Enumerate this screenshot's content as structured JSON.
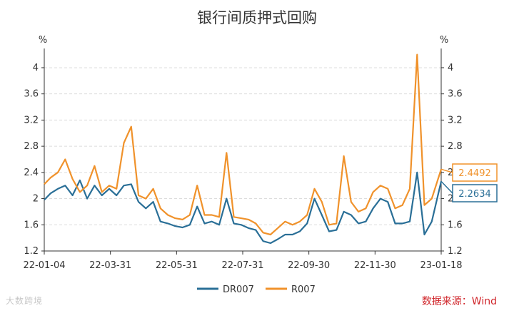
{
  "source_label": "数据来源：Wind",
  "watermark_text": "大数跨境",
  "colors": {
    "dr007": "#2a6f97",
    "r007": "#f0922b",
    "grid": "#dcdcdc",
    "axis": "#333333",
    "source": "#d0262b"
  },
  "chart_data": {
    "type": "line",
    "title": "银行间质押式回购",
    "y_unit_left": "%",
    "y_unit_right": "%",
    "ylim": [
      1.2,
      4.25
    ],
    "yticks": [
      1.2,
      1.6,
      2,
      2.4,
      2.8,
      3.2,
      3.6,
      4
    ],
    "ytick_labels": [
      "1.2",
      "1.6",
      "2",
      "2.4",
      "2.8",
      "3.2",
      "3.6",
      "4"
    ],
    "xlim": [
      "2022-01-04",
      "2023-01-18"
    ],
    "xtick_labels": [
      "22-01-04",
      "22-03-31",
      "22-05-31",
      "22-07-31",
      "22-09-30",
      "22-11-30",
      "23-01-18"
    ],
    "grid": true,
    "legend_position": "bottom",
    "end_labels": {
      "R007": "2.4492",
      "DR007": "2.2634"
    },
    "series": [
      {
        "name": "DR007",
        "x": [
          "2022-01-04",
          "2022-01-10",
          "2022-01-17",
          "2022-01-24",
          "2022-01-31",
          "2022-02-07",
          "2022-02-14",
          "2022-02-21",
          "2022-02-28",
          "2022-03-07",
          "2022-03-14",
          "2022-03-21",
          "2022-03-28",
          "2022-04-04",
          "2022-04-11",
          "2022-04-18",
          "2022-04-25",
          "2022-05-02",
          "2022-05-09",
          "2022-05-16",
          "2022-05-23",
          "2022-05-30",
          "2022-06-06",
          "2022-06-13",
          "2022-06-20",
          "2022-06-27",
          "2022-07-04",
          "2022-07-11",
          "2022-07-18",
          "2022-07-25",
          "2022-08-01",
          "2022-08-08",
          "2022-08-15",
          "2022-08-22",
          "2022-08-29",
          "2022-09-05",
          "2022-09-12",
          "2022-09-19",
          "2022-09-26",
          "2022-10-03",
          "2022-10-10",
          "2022-10-17",
          "2022-10-24",
          "2022-10-31",
          "2022-11-07",
          "2022-11-14",
          "2022-11-21",
          "2022-11-28",
          "2022-12-05",
          "2022-12-12",
          "2022-12-19",
          "2022-12-26",
          "2023-01-02",
          "2023-01-09",
          "2023-01-18"
        ],
        "values": [
          1.98,
          2.08,
          2.15,
          2.2,
          2.05,
          2.28,
          2.0,
          2.2,
          2.05,
          2.15,
          2.05,
          2.2,
          2.22,
          1.95,
          1.85,
          1.95,
          1.65,
          1.62,
          1.58,
          1.56,
          1.6,
          1.88,
          1.62,
          1.65,
          1.6,
          2.0,
          1.62,
          1.6,
          1.55,
          1.52,
          1.35,
          1.32,
          1.38,
          1.45,
          1.45,
          1.5,
          1.62,
          2.0,
          1.75,
          1.5,
          1.52,
          1.8,
          1.75,
          1.62,
          1.65,
          1.85,
          2.0,
          1.95,
          1.62,
          1.62,
          1.65,
          2.4,
          1.45,
          1.65,
          2.2634
        ]
      },
      {
        "name": "R007",
        "x": [
          "2022-01-04",
          "2022-01-10",
          "2022-01-17",
          "2022-01-24",
          "2022-01-31",
          "2022-02-07",
          "2022-02-14",
          "2022-02-21",
          "2022-02-28",
          "2022-03-07",
          "2022-03-14",
          "2022-03-21",
          "2022-03-28",
          "2022-04-04",
          "2022-04-11",
          "2022-04-18",
          "2022-04-25",
          "2022-05-02",
          "2022-05-09",
          "2022-05-16",
          "2022-05-23",
          "2022-05-30",
          "2022-06-06",
          "2022-06-13",
          "2022-06-20",
          "2022-06-27",
          "2022-07-04",
          "2022-07-11",
          "2022-07-18",
          "2022-07-25",
          "2022-08-01",
          "2022-08-08",
          "2022-08-15",
          "2022-08-22",
          "2022-08-29",
          "2022-09-05",
          "2022-09-12",
          "2022-09-19",
          "2022-09-26",
          "2022-10-03",
          "2022-10-10",
          "2022-10-17",
          "2022-10-24",
          "2022-10-31",
          "2022-11-07",
          "2022-11-14",
          "2022-11-21",
          "2022-11-28",
          "2022-12-05",
          "2022-12-12",
          "2022-12-19",
          "2022-12-26",
          "2023-01-02",
          "2023-01-09",
          "2023-01-18"
        ],
        "values": [
          2.22,
          2.32,
          2.4,
          2.6,
          2.3,
          2.1,
          2.2,
          2.5,
          2.1,
          2.2,
          2.15,
          2.85,
          3.1,
          2.05,
          2.0,
          2.15,
          1.85,
          1.75,
          1.7,
          1.68,
          1.75,
          2.2,
          1.75,
          1.75,
          1.72,
          2.7,
          1.72,
          1.7,
          1.68,
          1.62,
          1.48,
          1.45,
          1.55,
          1.65,
          1.6,
          1.65,
          1.75,
          2.15,
          1.95,
          1.6,
          1.62,
          2.65,
          1.95,
          1.8,
          1.85,
          2.1,
          2.2,
          2.15,
          1.85,
          1.9,
          2.15,
          4.2,
          1.9,
          2.0,
          2.4492
        ]
      }
    ]
  }
}
